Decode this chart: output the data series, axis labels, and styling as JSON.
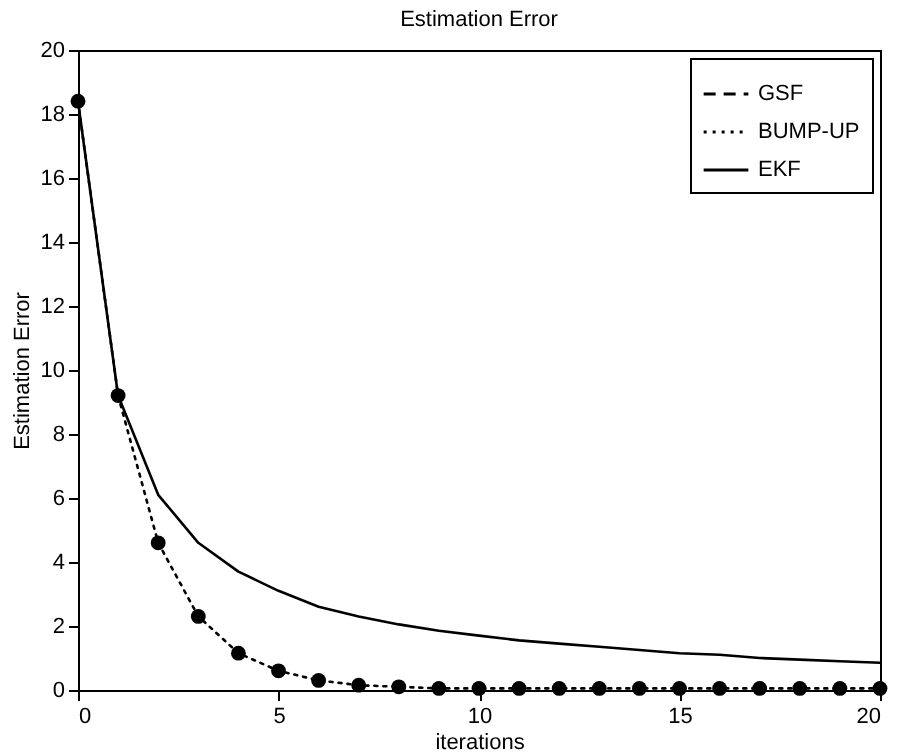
{
  "chart_data": {
    "type": "line",
    "title": "Estimation Error",
    "xlabel": "iterations",
    "ylabel": "Estimation Error",
    "x": [
      0,
      1,
      2,
      3,
      4,
      5,
      6,
      7,
      8,
      9,
      10,
      11,
      12,
      13,
      14,
      15,
      16,
      17,
      18,
      19,
      20
    ],
    "xlim": [
      0,
      20
    ],
    "xticks": [
      0,
      5,
      10,
      15,
      20
    ],
    "ylim": [
      0,
      20
    ],
    "yticks": [
      0,
      2,
      4,
      6,
      8,
      10,
      12,
      14,
      16,
      18,
      20
    ],
    "grid": false,
    "legend": "top right",
    "series": [
      {
        "name": "GSF",
        "color": "#000000",
        "line_style": "dashed",
        "values": [
          null,
          null,
          null,
          null,
          null,
          null,
          null,
          null,
          null,
          null,
          null,
          null,
          null,
          null,
          null,
          null,
          null,
          null,
          null,
          null,
          null
        ]
      },
      {
        "name": "BUMP-UP",
        "color": "#000000",
        "line_style": "dotted",
        "marker": "circle",
        "values": [
          18.4,
          9.2,
          4.6,
          2.3,
          1.15,
          0.6,
          0.3,
          0.15,
          0.1,
          0.05,
          0.05,
          0.05,
          0.05,
          0.05,
          0.05,
          0.05,
          0.05,
          0.05,
          0.05,
          0.05,
          0.05
        ]
      },
      {
        "name": "EKF",
        "color": "#000000",
        "line_style": "solid",
        "marker": "none",
        "values": [
          18.4,
          9.2,
          6.1,
          4.6,
          3.7,
          3.1,
          2.6,
          2.3,
          2.05,
          1.85,
          1.7,
          1.55,
          1.45,
          1.35,
          1.25,
          1.15,
          1.1,
          1.0,
          0.95,
          0.9,
          0.85
        ]
      }
    ]
  }
}
